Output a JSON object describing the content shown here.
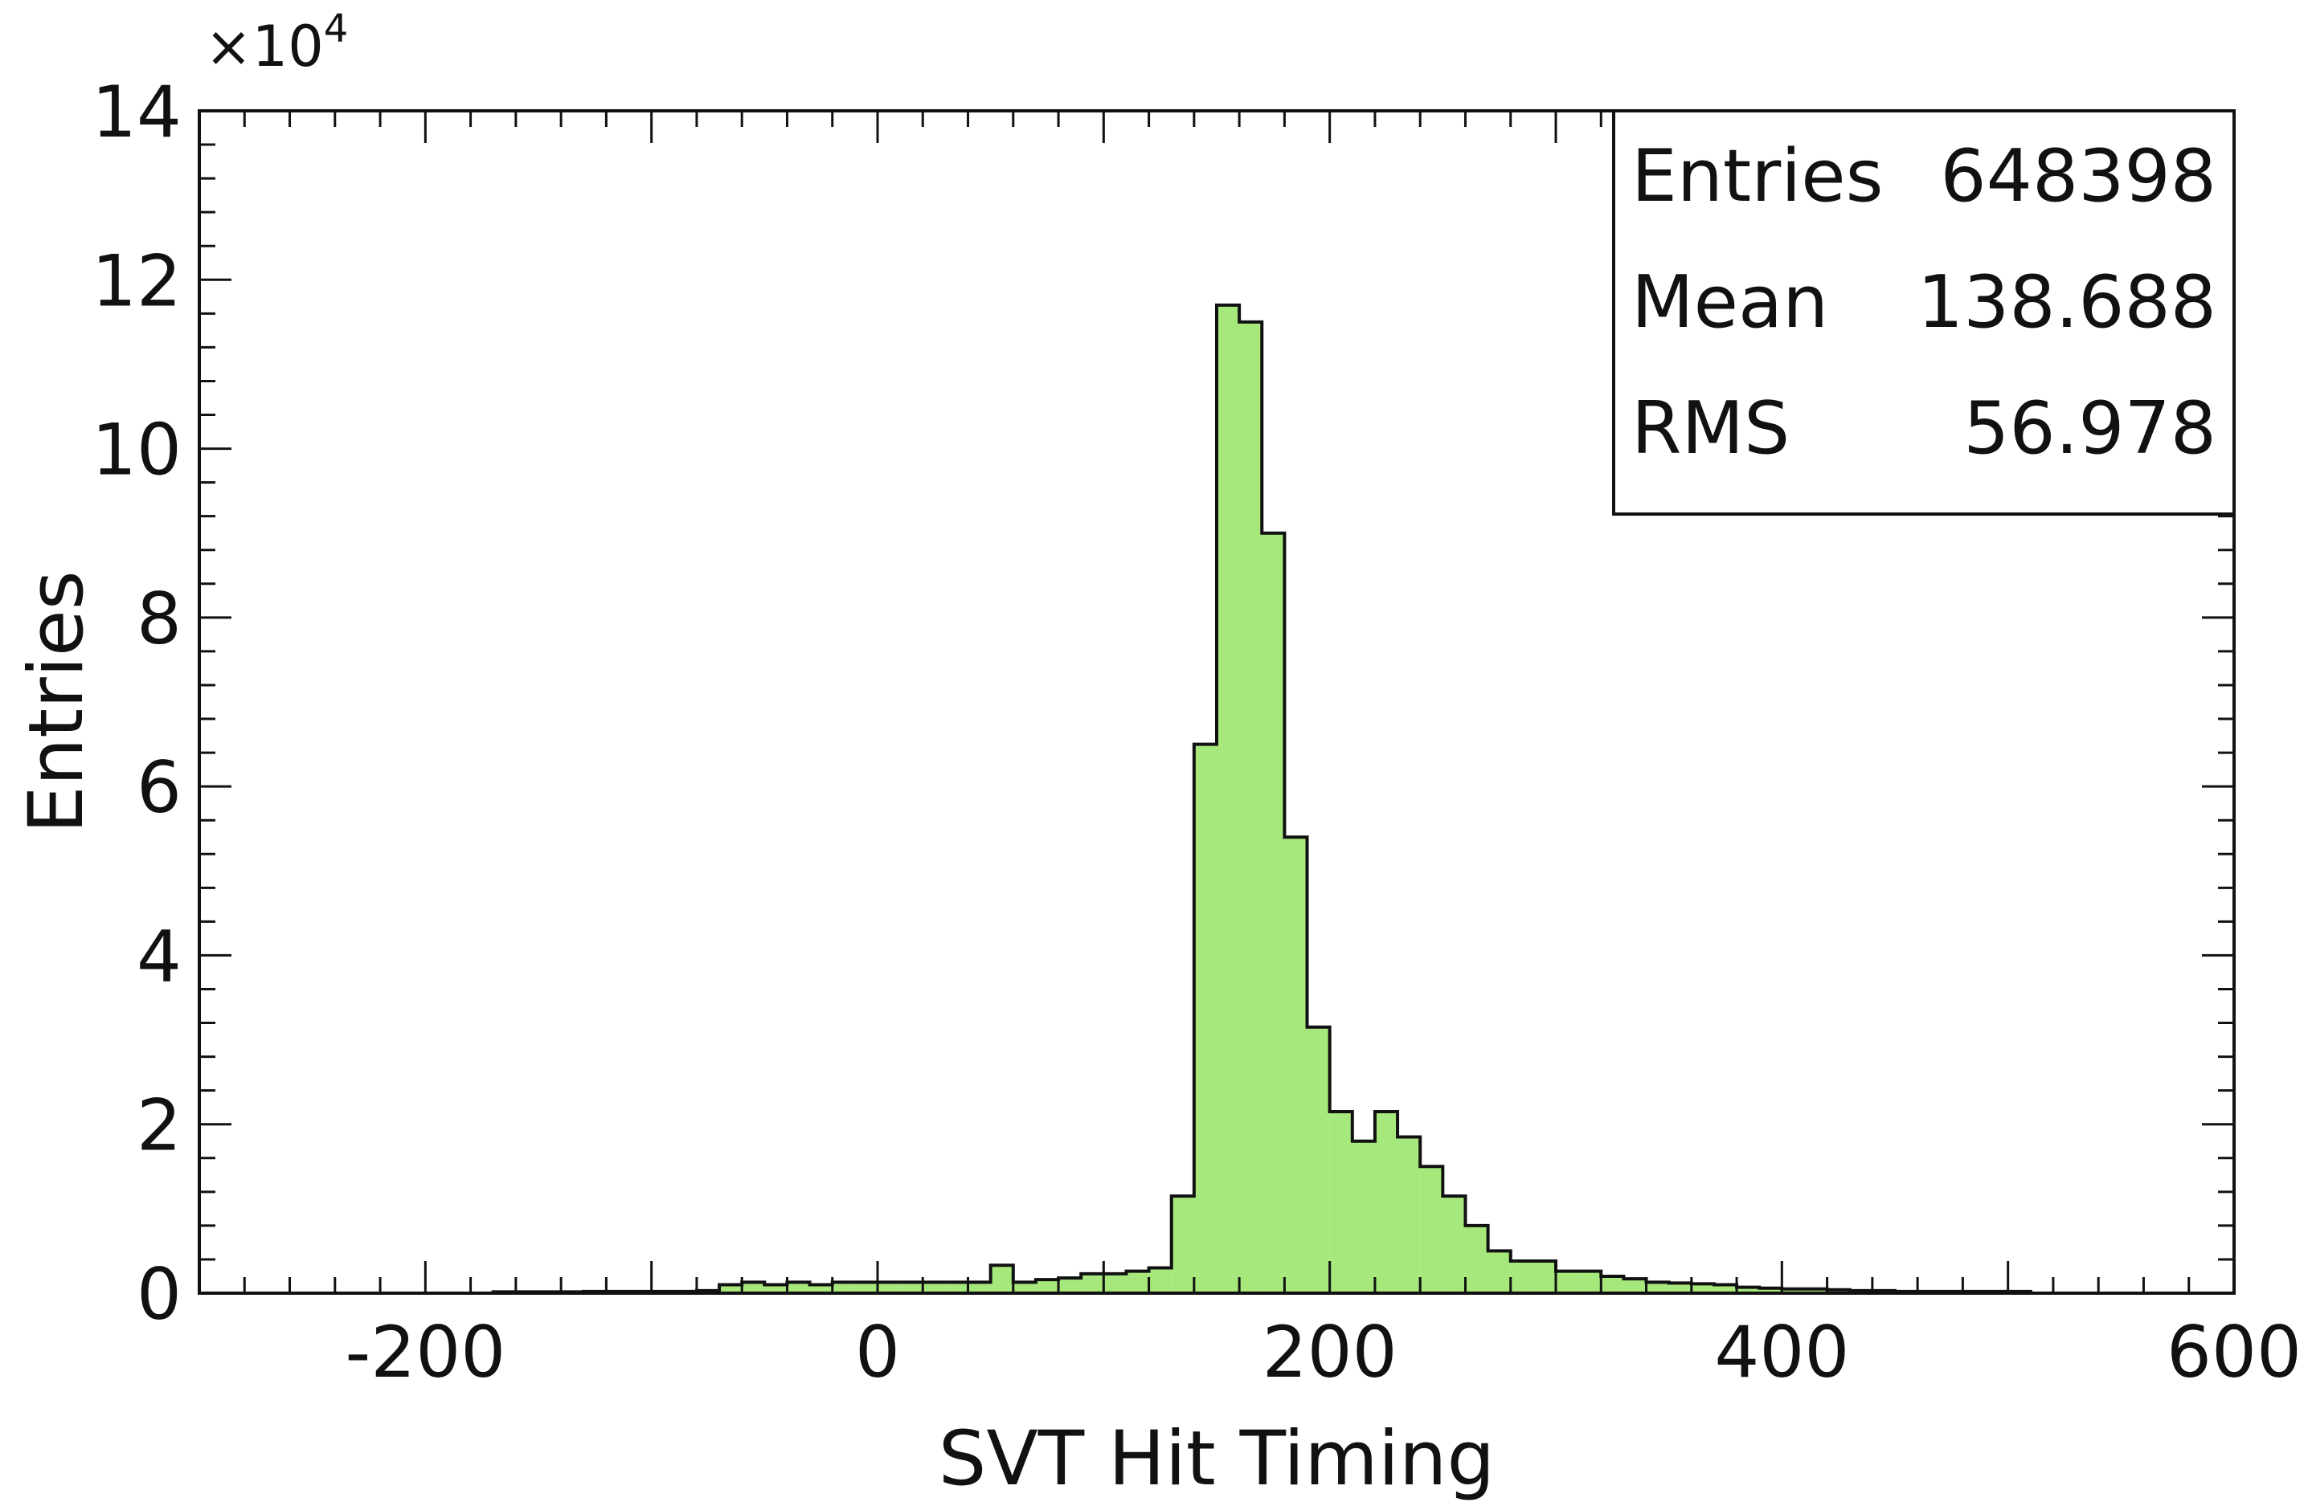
{
  "chart_data": {
    "type": "bar",
    "subtype": "histogram",
    "xlabel": "SVT Hit Timing",
    "ylabel": "Entries",
    "y_multiplier": {
      "base": "×10",
      "exponent": "4"
    },
    "xlim": [
      -300,
      600
    ],
    "ylim": [
      0,
      140000
    ],
    "x_ticks": [
      {
        "value": -200,
        "label": "-200"
      },
      {
        "value": 0,
        "label": "0"
      },
      {
        "value": 200,
        "label": "200"
      },
      {
        "value": 400,
        "label": "400"
      },
      {
        "value": 600,
        "label": "600"
      }
    ],
    "y_ticks": [
      {
        "value": 0,
        "label": "0"
      },
      {
        "value": 20000,
        "label": "2"
      },
      {
        "value": 40000,
        "label": "4"
      },
      {
        "value": 60000,
        "label": "6"
      },
      {
        "value": 80000,
        "label": "8"
      },
      {
        "value": 100000,
        "label": "10"
      },
      {
        "value": 120000,
        "label": "12"
      },
      {
        "value": 140000,
        "label": "14"
      }
    ],
    "x_minor_step": 20,
    "y_minor_step": 4000,
    "bins": {
      "start": -300,
      "width": 10,
      "counts": [
        0,
        0,
        0,
        0,
        0,
        0,
        0,
        0,
        0,
        0,
        0,
        0,
        0,
        150,
        150,
        150,
        150,
        200,
        200,
        200,
        200,
        200,
        300,
        1000,
        1300,
        1000,
        1300,
        1000,
        1300,
        1300,
        1300,
        1300,
        1300,
        1300,
        1300,
        3300,
        1300,
        1600,
        1800,
        2300,
        2300,
        2600,
        3000,
        11500,
        65000,
        117000,
        115000,
        90000,
        54000,
        31500,
        21500,
        18000,
        21500,
        18500,
        15000,
        11500,
        8000,
        5000,
        3800,
        3800,
        2600,
        2600,
        2000,
        1700,
        1300,
        1200,
        1100,
        1000,
        700,
        600,
        500,
        500,
        400,
        300,
        300,
        200,
        200,
        200,
        200,
        200,
        200,
        0,
        0,
        0,
        0,
        0,
        0,
        0,
        0,
        0
      ]
    },
    "colors": {
      "fill": "#a6e87c",
      "stroke": "#111111"
    },
    "stats": [
      {
        "label": "Entries",
        "value": "648398"
      },
      {
        "label": "Mean",
        "value": "138.688"
      },
      {
        "label": "RMS",
        "value": "56.978"
      }
    ],
    "legend_position": "top-right",
    "grid": false
  }
}
